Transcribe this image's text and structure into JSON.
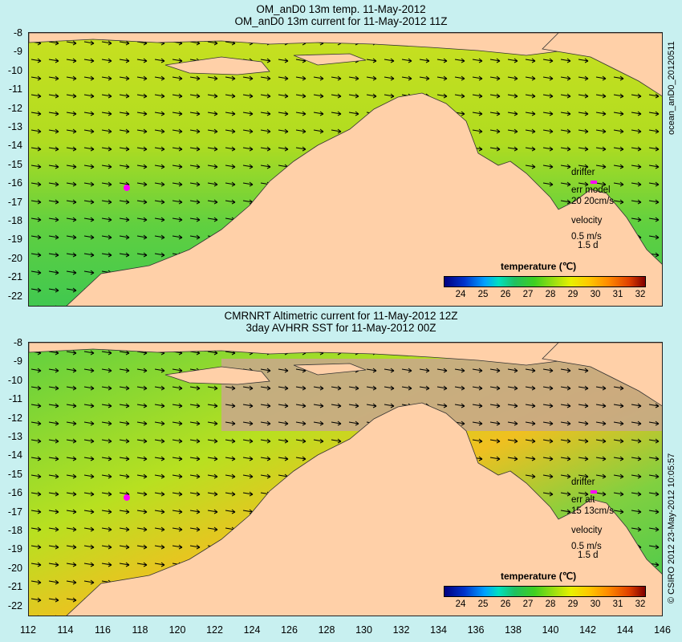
{
  "top": {
    "title1": "OM_anD0 13m temp. 11-May-2012",
    "title2": "OM_anD0 13m current for 11-May-2012 11Z",
    "side_label": "ocean_anD0_20120511",
    "legend": {
      "drifter": "drifter",
      "err": "err model",
      "err_val": "20 20cm/s",
      "velocity": "velocity",
      "vel_val": "0.5 m/s",
      "vel_days": "1.5 d"
    },
    "colorbar_label": "temperature (℃)"
  },
  "bottom": {
    "title1": "CMRNRT Altimetric current for 11-May-2012 12Z",
    "title2": "3day AVHRR SST for 11-May-2012 00Z",
    "side_label": "© CSIRO 2012  23-May-2012 10:05:57",
    "legend": {
      "drifter": "drifter",
      "err": "err alt",
      "err_val": "15 13cm/s",
      "velocity": "velocity",
      "vel_val": "0.5 m/s",
      "vel_days": "1.5 d"
    },
    "colorbar_label": "temperature (℃)"
  },
  "axes": {
    "lat_ticks": [
      "-8",
      "-9",
      "-10",
      "-11",
      "-12",
      "-13",
      "-14",
      "-15",
      "-16",
      "-17",
      "-18",
      "-19",
      "-20",
      "-21",
      "-22"
    ],
    "lon_ticks": [
      "112",
      "114",
      "116",
      "118",
      "120",
      "122",
      "124",
      "126",
      "128",
      "130",
      "132",
      "134",
      "136",
      "138",
      "140",
      "142",
      "144",
      "146"
    ],
    "colorbar_ticks": [
      "24",
      "25",
      "26",
      "27",
      "28",
      "29",
      "30",
      "31",
      "32"
    ]
  },
  "colors": {
    "land": "#ffd0a8",
    "background": "#c8f0f0",
    "drifter": "#ff00ff"
  }
}
